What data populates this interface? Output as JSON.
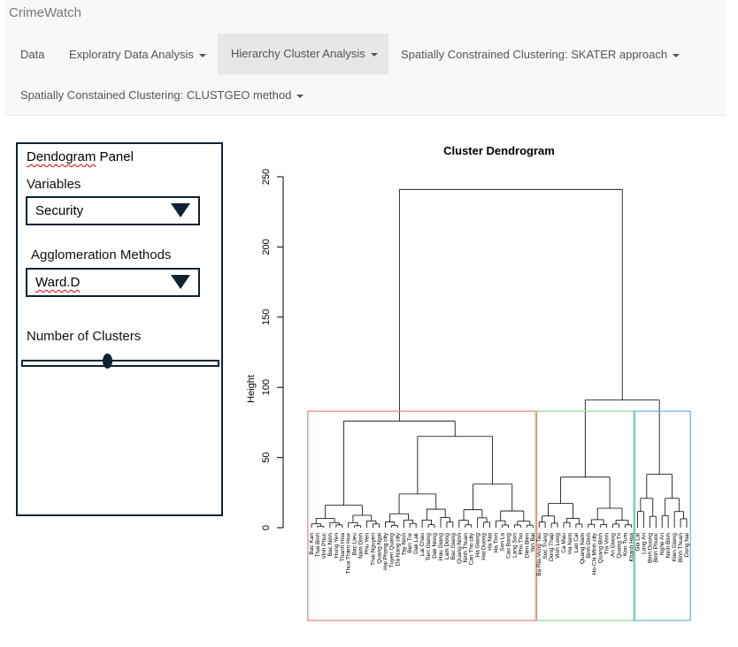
{
  "app": {
    "brand": "CrimeWatch"
  },
  "nav": {
    "items": [
      {
        "label": "Data",
        "dropdown": false
      },
      {
        "label": "Exploratry Data Analysis",
        "dropdown": true
      },
      {
        "label": "Hierarchy Cluster Analysis",
        "dropdown": true,
        "active": true
      },
      {
        "label": "Spatially Constrained Clustering: SKATER approach",
        "dropdown": true
      },
      {
        "label": "Spatially Constained Clustering: CLUSTGEO method",
        "dropdown": true
      }
    ]
  },
  "panel": {
    "title_word": "Dendogram",
    "title_rest": " Panel",
    "variables_label": "Variables",
    "variables_value": "Security",
    "method_label": "Agglomeration Methods",
    "method_value": "Ward.D",
    "clusters_label": "Number of Clusters",
    "clusters_value": 3
  },
  "chart_data": {
    "type": "dendrogram",
    "title": "Cluster Dendrogram",
    "ylabel": "Height",
    "ylim": [
      0,
      250
    ],
    "yticks": [
      0,
      50,
      100,
      150,
      200,
      250
    ],
    "merge_heights": {
      "root": 241,
      "left_main": 76,
      "left_right_sub": 65,
      "right_main": 91,
      "green_root": 36,
      "blue_root": 38
    },
    "clusters": [
      {
        "color": "#f08080",
        "leaves": [
          "Bac Kan",
          "Thai Binh",
          "Vinh Phuc",
          "Bac Ninh",
          "Hung Yen",
          "Thanh Hoa",
          "Thua Thien Hue",
          "Bac Lieu",
          "Nam Dinh",
          "Phu Yen",
          "Thai Nguyen",
          "Quang Ngai",
          "Hai Phong city",
          "Tuyen Quang",
          "Da Nang city",
          "Tay Ninh",
          "Ben Tre",
          "Dak Lak",
          "Lai Chau",
          "Tien Giang",
          "Dak Nong",
          "Hau Giang",
          "Lam Dong",
          "Bac Giang",
          "Quang Ninh",
          "Ninh Thuan",
          "Can Tho city",
          "Ha Giang",
          "Hai Duong",
          "Ha Noi",
          "Ha Tinh",
          "Son La",
          "Cao Bang",
          "Lang Son",
          "Phu Tho",
          "Dien Bien",
          "Yen Bai"
        ]
      },
      {
        "color": "#90d890",
        "leaves": [
          "Ba Ria-Vung Tau",
          "Soc Trang",
          "Dong Thap",
          "Vinh Long",
          "Ca Mau",
          "Ha Nam",
          "Lao Cai",
          "Quang Nam",
          "Binh Dinh",
          "Ho Chi Minh city",
          "Quang Binh",
          "Tra Vinh",
          "An Giang",
          "Quang Tri",
          "Kon Tum",
          "Khanh Hoa"
        ]
      },
      {
        "color": "#6ab0e0",
        "leaves": [
          "Gia Lai",
          "Long An",
          "Binh Duong",
          "Binh Phuoc",
          "Nghe An",
          "Ninh Binh",
          "Kien Giang",
          "Binh Thuan",
          "Dong Nai"
        ]
      }
    ]
  }
}
